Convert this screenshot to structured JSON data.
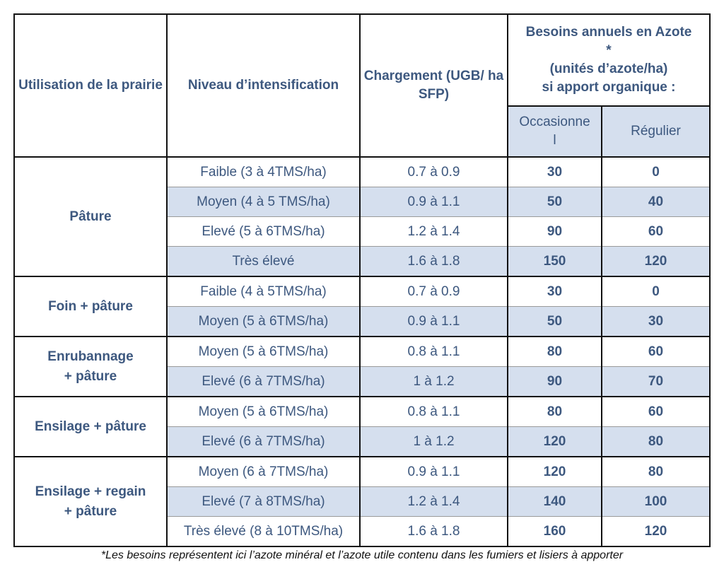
{
  "header": {
    "col1": "Utilisation de la prairie",
    "col2": "Niveau d’intensification",
    "col3": "Chargement (UGB/ ha SFP)",
    "col4_line1": "Besoins annuels en Azote",
    "col4_line2": "*",
    "col4_line3": "(unités d’azote/ha)",
    "col4_line4": "si apport organique :",
    "sub_occ_line1": "Occasionne",
    "sub_occ_line2": "l",
    "sub_reg": "Régulier"
  },
  "groups": [
    {
      "use_lines": [
        "Pâture"
      ],
      "rows": [
        {
          "level": "Faible (3 à 4TMS/ha)",
          "charge": "0.7 à 0.9",
          "occ": "30",
          "reg": "0"
        },
        {
          "level": "Moyen (4 à 5 TMS/ha)",
          "charge": "0.9 à 1.1",
          "occ": "50",
          "reg": "40"
        },
        {
          "level": "Elevé (5 à 6TMS/ha)",
          "charge": "1.2 à 1.4",
          "occ": "90",
          "reg": "60"
        },
        {
          "level": "Très élevé",
          "charge": "1.6 à 1.8",
          "occ": "150",
          "reg": "120"
        }
      ]
    },
    {
      "use_lines": [
        "Foin + pâture"
      ],
      "rows": [
        {
          "level": "Faible (4 à 5TMS/ha)",
          "charge": "0.7 à 0.9",
          "occ": "30",
          "reg": "0"
        },
        {
          "level": "Moyen (5 à 6TMS/ha)",
          "charge": "0.9 à 1.1",
          "occ": "50",
          "reg": "30"
        }
      ]
    },
    {
      "use_lines": [
        "Enrubannage",
        "+ pâture"
      ],
      "rows": [
        {
          "level": "Moyen (5 à 6TMS/ha)",
          "charge": "0.8 à 1.1",
          "occ": "80",
          "reg": "60"
        },
        {
          "level": "Elevé (6 à 7TMS/ha)",
          "charge": "1 à 1.2",
          "occ": "90",
          "reg": "70"
        }
      ]
    },
    {
      "use_lines": [
        "Ensilage + pâture"
      ],
      "rows": [
        {
          "level": "Moyen (5 à 6TMS/ha)",
          "charge": "0.8 à 1.1",
          "occ": "80",
          "reg": "60"
        },
        {
          "level": "Elevé (6 à 7TMS/ha)",
          "charge": "1 à 1.2",
          "occ": "120",
          "reg": "80"
        }
      ]
    },
    {
      "use_lines": [
        "Ensilage + regain",
        "+ pâture"
      ],
      "rows": [
        {
          "level": "Moyen (6 à 7TMS/ha)",
          "charge": "0.9 à 1.1",
          "occ": "120",
          "reg": "80"
        },
        {
          "level": "Elevé (7 à 8TMS/ha)",
          "charge": "1.2 à 1.4",
          "occ": "140",
          "reg": "100"
        },
        {
          "level": "Très élevé (8 à 10TMS/ha)",
          "charge": "1.6 à 1.8",
          "occ": "160",
          "reg": "120"
        }
      ]
    }
  ],
  "footnote": "*Les besoins représentent ici l’azote minéral et l’azote utile contenu dans les fumiers et lisiers à apporter",
  "colors": {
    "text": "#3d587f",
    "shade": "#d5dfee",
    "border": "#111111"
  }
}
